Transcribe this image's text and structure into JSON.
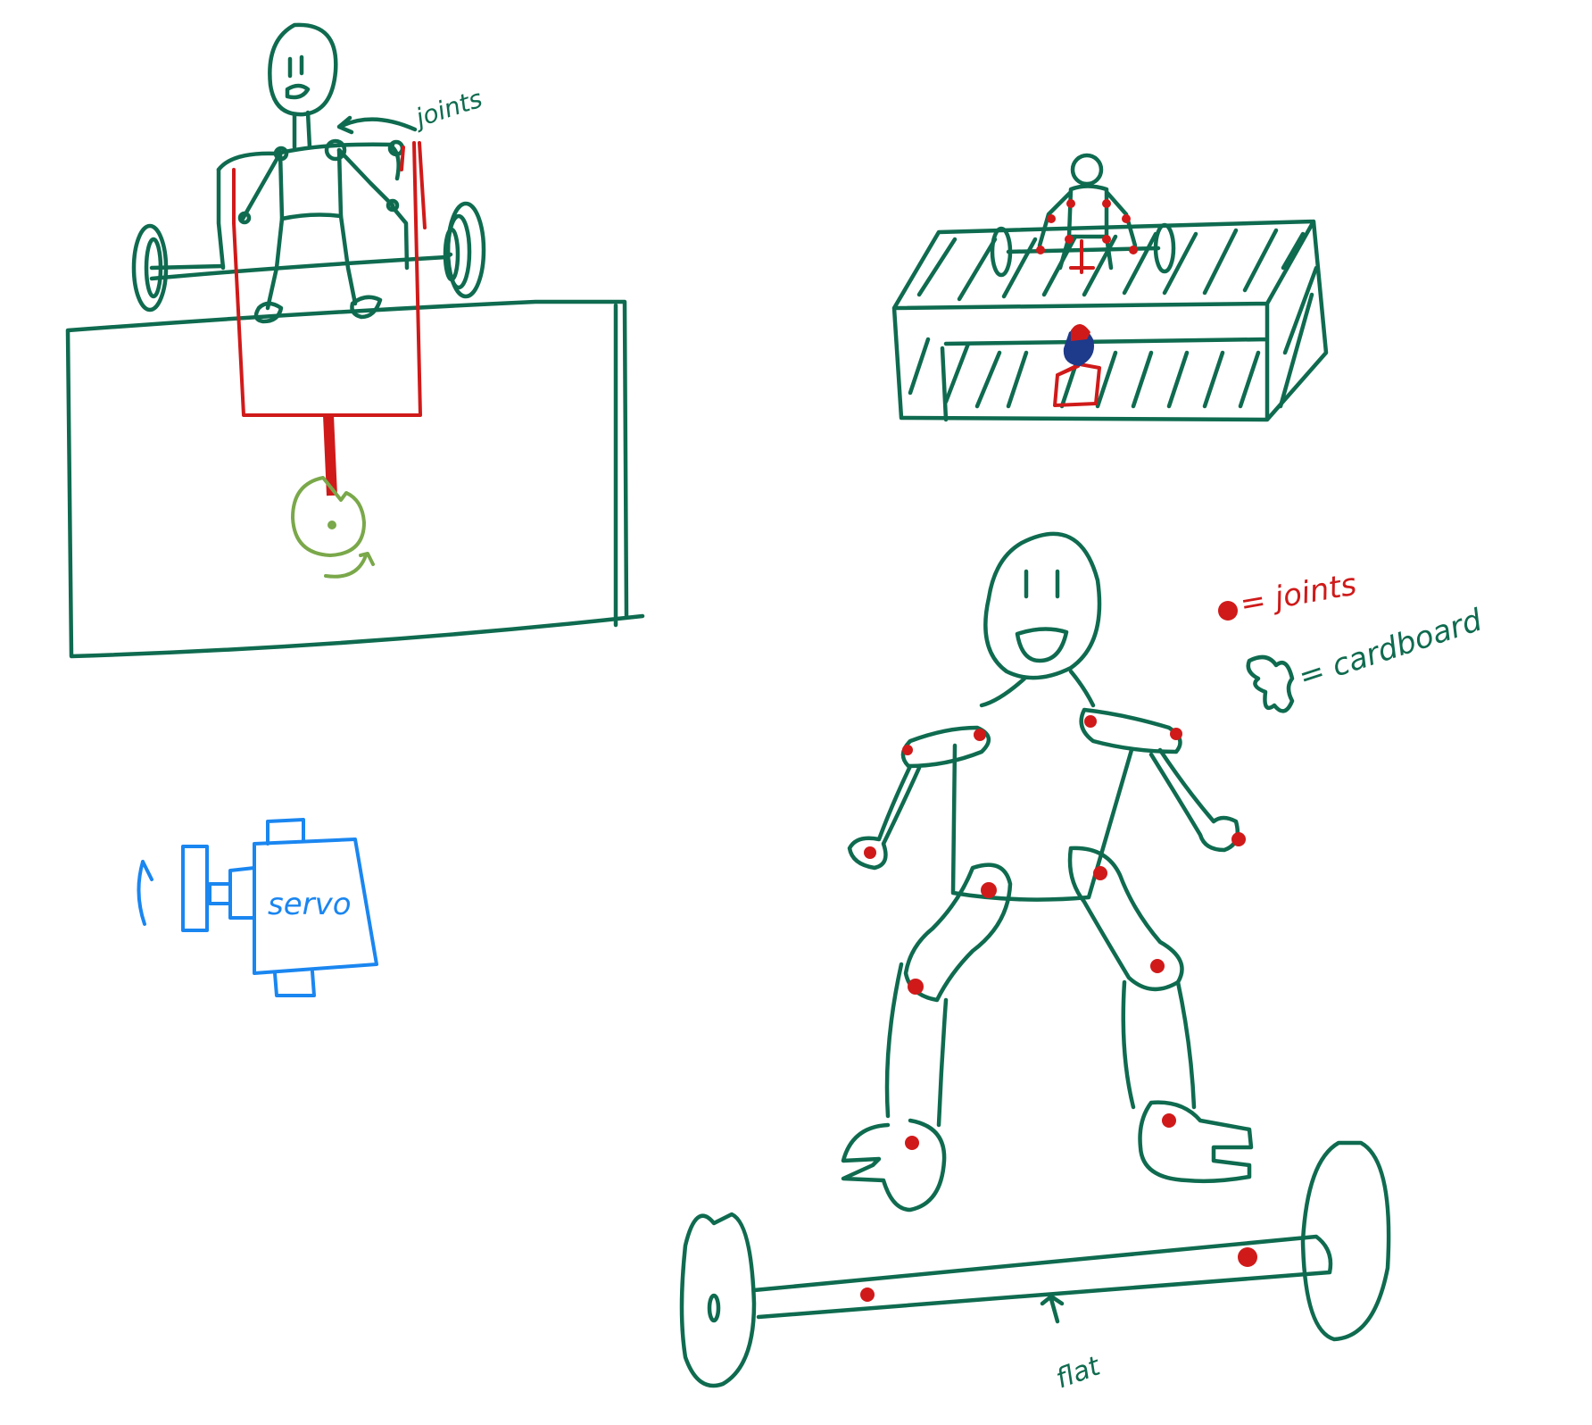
{
  "labels": {
    "joints_top": "joints",
    "servo": "servo",
    "legend_joints": "= joints",
    "legend_cardboard": "= cardboard",
    "flat": "flat"
  },
  "colors": {
    "ink_green": "#0f6b4f",
    "ink_red": "#d01a1a",
    "ink_light_green": "#7aa84a",
    "ink_blue": "#1a86f0",
    "ink_dark_blue": "#1e3a8a",
    "background": "#ffffff"
  }
}
